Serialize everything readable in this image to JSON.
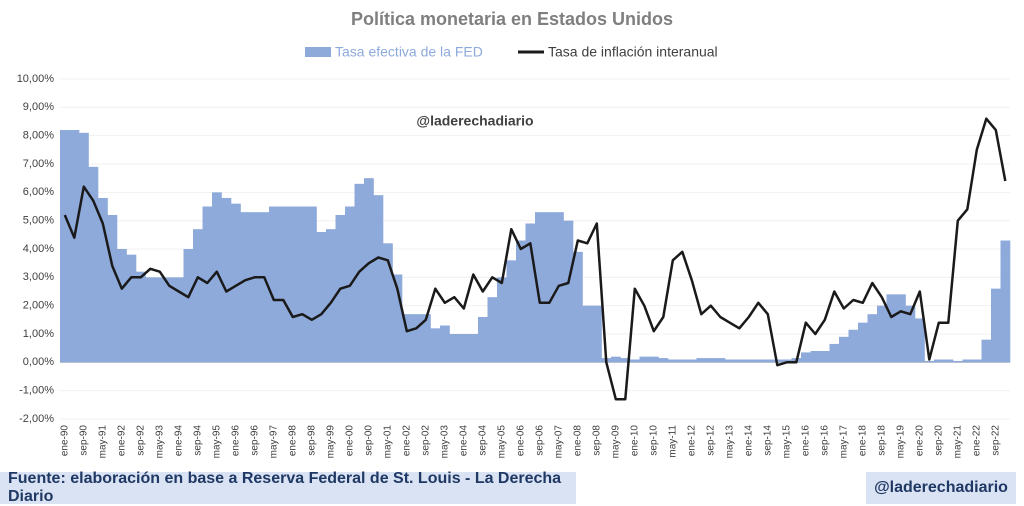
{
  "chart_data": {
    "type": "bar_line",
    "title": "Política monetaria en Estados Unidos",
    "watermark": "@laderechadiario",
    "source": "Fuente: elaboración en base a Reserva Federal de St. Louis - La Derecha Diario",
    "brand": "@laderechadiario",
    "categories": [
      "ene-90",
      null,
      "sep-90",
      null,
      "may-91",
      null,
      "ene-92",
      null,
      "sep-92",
      null,
      "may-93",
      null,
      "ene-94",
      null,
      "sep-94",
      null,
      "may-95",
      null,
      "ene-96",
      null,
      "sep-96",
      null,
      "may-97",
      null,
      "ene-98",
      null,
      "sep-98",
      null,
      "may-99",
      null,
      "ene-00",
      null,
      "sep-00",
      null,
      "may-01",
      null,
      "ene-02",
      null,
      "sep-02",
      null,
      "may-03",
      null,
      "ene-04",
      null,
      "sep-04",
      null,
      "may-05",
      null,
      "ene-06",
      null,
      "sep-06",
      null,
      "may-07",
      null,
      "ene-08",
      null,
      "sep-08",
      null,
      "may-09",
      null,
      "ene-10",
      null,
      "sep-10",
      null,
      "may-11",
      null,
      "ene-12",
      null,
      "sep-12",
      null,
      "may-13",
      null,
      "ene-14",
      null,
      "sep-14",
      null,
      "may-15",
      null,
      "ene-16",
      null,
      "sep-16",
      null,
      "may-17",
      null,
      "ene-18",
      null,
      "sep-18",
      null,
      "may-19",
      null,
      "ene-20",
      null,
      "sep-20",
      null,
      "may-21",
      null,
      "ene-22",
      null,
      "sep-22",
      null
    ],
    "series": [
      {
        "name": "Tasa efectiva de la FED",
        "kind": "bar",
        "color": "#8eaadb",
        "values": [
          8.2,
          8.2,
          8.1,
          6.9,
          5.8,
          5.2,
          4.0,
          3.8,
          3.2,
          3.0,
          3.0,
          3.0,
          3.0,
          4.0,
          4.7,
          5.5,
          6.0,
          5.8,
          5.6,
          5.3,
          5.3,
          5.3,
          5.5,
          5.5,
          5.5,
          5.5,
          5.5,
          4.6,
          4.7,
          5.2,
          5.5,
          6.3,
          6.5,
          5.9,
          4.2,
          3.1,
          1.7,
          1.7,
          1.7,
          1.2,
          1.3,
          1.0,
          1.0,
          1.0,
          1.6,
          2.3,
          3.0,
          3.6,
          4.3,
          4.9,
          5.3,
          5.3,
          5.3,
          5.0,
          3.9,
          2.0,
          2.0,
          0.15,
          0.2,
          0.15,
          0.1,
          0.2,
          0.2,
          0.15,
          0.1,
          0.1,
          0.1,
          0.15,
          0.15,
          0.15,
          0.1,
          0.1,
          0.1,
          0.1,
          0.1,
          0.1,
          0.1,
          0.15,
          0.35,
          0.4,
          0.4,
          0.65,
          0.9,
          1.15,
          1.4,
          1.7,
          2.0,
          2.4,
          2.4,
          2.0,
          1.55,
          0.05,
          0.1,
          0.1,
          0.05,
          0.1,
          0.1,
          0.8,
          2.6,
          4.3
        ]
      },
      {
        "name": "Tasa de inflación interanual",
        "kind": "line",
        "color": "#1a1a1a",
        "values": [
          5.2,
          4.4,
          6.2,
          5.7,
          4.9,
          3.4,
          2.6,
          3.0,
          3.0,
          3.3,
          3.2,
          2.7,
          2.5,
          2.3,
          3.0,
          2.8,
          3.2,
          2.5,
          2.7,
          2.9,
          3.0,
          3.0,
          2.2,
          2.2,
          1.6,
          1.7,
          1.5,
          1.7,
          2.1,
          2.6,
          2.7,
          3.2,
          3.5,
          3.7,
          3.6,
          2.6,
          1.1,
          1.2,
          1.5,
          2.6,
          2.1,
          2.3,
          1.9,
          3.1,
          2.5,
          3.0,
          2.8,
          4.7,
          4.0,
          4.2,
          2.1,
          2.1,
          2.7,
          2.8,
          4.3,
          4.2,
          4.9,
          0.0,
          -1.3,
          -1.3,
          2.6,
          2.0,
          1.1,
          1.6,
          3.6,
          3.9,
          2.9,
          1.7,
          2.0,
          1.6,
          1.4,
          1.2,
          1.6,
          2.1,
          1.7,
          -0.1,
          0.0,
          0.0,
          1.4,
          1.0,
          1.5,
          2.5,
          1.9,
          2.2,
          2.1,
          2.8,
          2.3,
          1.6,
          1.8,
          1.7,
          2.5,
          0.1,
          1.4,
          1.4,
          5.0,
          5.4,
          7.5,
          8.6,
          8.2,
          6.4
        ]
      }
    ],
    "ylim": [
      -2,
      10
    ],
    "yticks": [
      {
        "value": -2,
        "label": "-2,00%"
      },
      {
        "value": -1,
        "label": "-1,00%"
      },
      {
        "value": 0,
        "label": "0,00%"
      },
      {
        "value": 1,
        "label": "1,00%"
      },
      {
        "value": 2,
        "label": "2,00%"
      },
      {
        "value": 3,
        "label": "3,00%"
      },
      {
        "value": 4,
        "label": "4,00%"
      },
      {
        "value": 5,
        "label": "5,00%"
      },
      {
        "value": 6,
        "label": "6,00%"
      },
      {
        "value": 7,
        "label": "7,00%"
      },
      {
        "value": 8,
        "label": "8,00%"
      },
      {
        "value": 9,
        "label": "9,00%"
      },
      {
        "value": 10,
        "label": "10,00%"
      }
    ],
    "grid": true,
    "legend": "top"
  }
}
